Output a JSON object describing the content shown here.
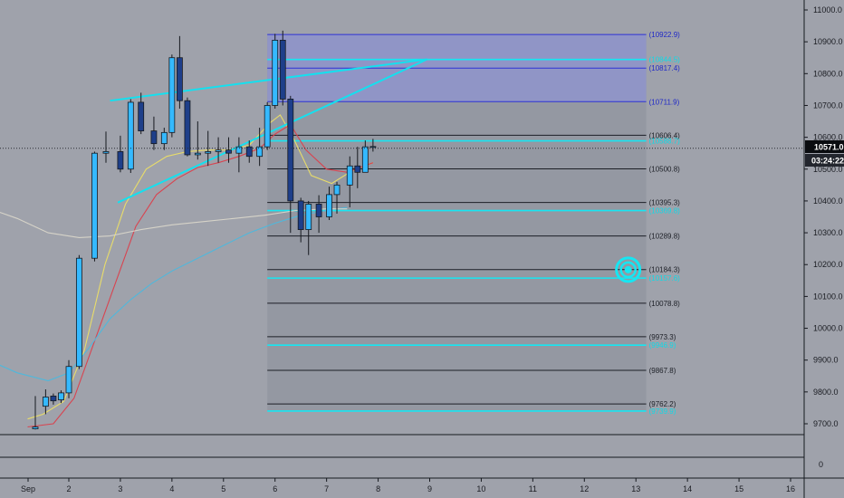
{
  "colors": {
    "background": "#9fa2ab",
    "candle_up": "#35b9ff",
    "candle_down": "#1e3f8a",
    "wick": "#16191f",
    "fib_zone": "#8f95c8",
    "fib_zone_edge": "#2c33d6",
    "fib_line": "#1c1f26",
    "fib_cyan": "#16e6f2",
    "ma_yellow": "#e8dc6a",
    "ma_red": "#d84450",
    "ma_blue": "#4fb8dc",
    "ma_white": "#d6d3c8",
    "trendline": "#14e0ef",
    "axis_bg": "#9fa2ab",
    "axis_line": "#16191f"
  },
  "chart_data": {
    "type": "candlestick",
    "title": "",
    "xlabel": "",
    "ylabel": "",
    "x_range": [
      0.3,
      16.75
    ],
    "ylim": [
      9565,
      11040
    ],
    "y_ticks": [
      "11000.0",
      "10900.0",
      "10800.0",
      "10700.0",
      "10600.0",
      "10500.0",
      "10400.0",
      "10300.0",
      "10200.0",
      "10100.0",
      "10000.0",
      "9900.0",
      "9800.0",
      "9700.0"
    ],
    "x_ticks": [
      {
        "x": 0.5,
        "label": "Sep"
      },
      {
        "x": 2,
        "label": "2"
      },
      {
        "x": 3,
        "label": "3"
      },
      {
        "x": 4,
        "label": "4"
      },
      {
        "x": 5,
        "label": "5"
      },
      {
        "x": 6,
        "label": "6"
      },
      {
        "x": 7,
        "label": "7"
      },
      {
        "x": 8,
        "label": "8"
      },
      {
        "x": 9,
        "label": "9"
      },
      {
        "x": 10,
        "label": "10"
      },
      {
        "x": 11,
        "label": "11"
      },
      {
        "x": 12,
        "label": "12"
      },
      {
        "x": 13,
        "label": "13"
      },
      {
        "x": 14,
        "label": "14"
      },
      {
        "x": 15,
        "label": "15"
      },
      {
        "x": 16,
        "label": "16"
      }
    ],
    "candles": [
      [
        1.35,
        9684,
        9787,
        9682,
        9690
      ],
      [
        1.55,
        9755,
        9808,
        9730,
        9784
      ],
      [
        1.7,
        9787,
        9795,
        9760,
        9772
      ],
      [
        1.85,
        9775,
        9805,
        9765,
        9797
      ],
      [
        2.0,
        9797,
        9900,
        9780,
        9880
      ],
      [
        2.2,
        9880,
        10230,
        9872,
        10220
      ],
      [
        2.5,
        10220,
        10555,
        10210,
        10550
      ],
      [
        2.72,
        10550,
        10618,
        10520,
        10555
      ],
      [
        3.0,
        10555,
        10605,
        10490,
        10500
      ],
      [
        3.2,
        10500,
        10720,
        10488,
        10710
      ],
      [
        3.4,
        10710,
        10740,
        10610,
        10620
      ],
      [
        3.65,
        10620,
        10665,
        10560,
        10580
      ],
      [
        3.85,
        10580,
        10630,
        10560,
        10615
      ],
      [
        4.0,
        10615,
        10860,
        10600,
        10850
      ],
      [
        4.15,
        10850,
        10918,
        10690,
        10715
      ],
      [
        4.3,
        10715,
        10725,
        10540,
        10545
      ],
      [
        4.5,
        10545,
        10650,
        10530,
        10550
      ],
      [
        4.7,
        10550,
        10620,
        10510,
        10555
      ],
      [
        4.9,
        10555,
        10600,
        10520,
        10560
      ],
      [
        5.1,
        10560,
        10600,
        10520,
        10550
      ],
      [
        5.3,
        10550,
        10600,
        10490,
        10570
      ],
      [
        5.5,
        10570,
        10590,
        10520,
        10540
      ],
      [
        5.7,
        10540,
        10630,
        10510,
        10570
      ],
      [
        5.85,
        10570,
        10710,
        10560,
        10700
      ],
      [
        6.0,
        10700,
        10925,
        10690,
        10905
      ],
      [
        6.15,
        10905,
        10935,
        10700,
        10720
      ],
      [
        6.3,
        10720,
        10730,
        10300,
        10400
      ],
      [
        6.5,
        10400,
        10410,
        10270,
        10310
      ],
      [
        6.65,
        10310,
        10400,
        10230,
        10390
      ],
      [
        6.85,
        10390,
        10418,
        10300,
        10350
      ],
      [
        7.05,
        10350,
        10445,
        10340,
        10420
      ],
      [
        7.2,
        10420,
        10460,
        10360,
        10450
      ],
      [
        7.45,
        10450,
        10540,
        10380,
        10510
      ],
      [
        7.6,
        10510,
        10570,
        10440,
        10490
      ],
      [
        7.75,
        10490,
        10590,
        10490,
        10570
      ],
      [
        7.9,
        10570,
        10595,
        10555,
        10571
      ]
    ],
    "moving_averages": [
      {
        "color_key": "ma_yellow",
        "points": [
          [
            1.2,
            9715
          ],
          [
            1.5,
            9730
          ],
          [
            1.9,
            9770
          ],
          [
            2.3,
            9930
          ],
          [
            2.7,
            10200
          ],
          [
            3.1,
            10390
          ],
          [
            3.5,
            10500
          ],
          [
            3.9,
            10540
          ],
          [
            4.3,
            10555
          ],
          [
            4.7,
            10560
          ],
          [
            5.1,
            10560
          ],
          [
            5.5,
            10575
          ],
          [
            5.9,
            10645
          ],
          [
            6.1,
            10670
          ],
          [
            6.35,
            10600
          ],
          [
            6.7,
            10480
          ],
          [
            7.1,
            10455
          ],
          [
            7.5,
            10495
          ],
          [
            7.9,
            10520
          ]
        ]
      },
      {
        "color_key": "ma_red",
        "points": [
          [
            1.2,
            9690
          ],
          [
            1.7,
            9700
          ],
          [
            2.1,
            9780
          ],
          [
            2.5,
            9960
          ],
          [
            2.9,
            10140
          ],
          [
            3.3,
            10320
          ],
          [
            3.7,
            10420
          ],
          [
            4.1,
            10470
          ],
          [
            4.5,
            10505
          ],
          [
            4.9,
            10520
          ],
          [
            5.3,
            10540
          ],
          [
            5.7,
            10565
          ],
          [
            6.0,
            10610
          ],
          [
            6.3,
            10640
          ],
          [
            6.6,
            10560
          ],
          [
            7.0,
            10500
          ],
          [
            7.4,
            10490
          ],
          [
            7.9,
            10520
          ]
        ]
      },
      {
        "color_key": "ma_blue",
        "points": [
          [
            0.3,
            9910
          ],
          [
            1.0,
            9860
          ],
          [
            1.6,
            9835
          ],
          [
            2.0,
            9860
          ],
          [
            2.4,
            9940
          ],
          [
            2.8,
            10030
          ],
          [
            3.2,
            10090
          ],
          [
            3.6,
            10140
          ],
          [
            4.0,
            10180
          ],
          [
            4.5,
            10220
          ],
          [
            5.0,
            10260
          ],
          [
            5.5,
            10300
          ],
          [
            6.0,
            10330
          ],
          [
            6.5,
            10355
          ],
          [
            7.0,
            10370
          ],
          [
            7.4,
            10380
          ]
        ]
      },
      {
        "color_key": "ma_white",
        "points": [
          [
            0.3,
            10385
          ],
          [
            1.0,
            10345
          ],
          [
            1.6,
            10300
          ],
          [
            2.2,
            10285
          ],
          [
            2.8,
            10290
          ],
          [
            3.4,
            10310
          ],
          [
            4.0,
            10325
          ],
          [
            4.6,
            10335
          ],
          [
            5.2,
            10345
          ],
          [
            5.8,
            10355
          ],
          [
            6.4,
            10370
          ],
          [
            7.0,
            10375
          ],
          [
            7.4,
            10375
          ]
        ]
      }
    ],
    "trendlines": [
      {
        "from": [
          2.8,
          10715
        ],
        "to": [
          8.95,
          10845
        ]
      },
      {
        "from": [
          2.95,
          10395
        ],
        "to": [
          8.95,
          10845
        ]
      }
    ],
    "fib_zone": {
      "x_start": 5.85,
      "x_end": 13.2,
      "top": 10922.9,
      "bottom": 10711.9
    },
    "fib_levels": [
      {
        "value": 10922.9,
        "label": "(10922.9)",
        "kind": "zone"
      },
      {
        "value": 10844.5,
        "label": "(10844.5)",
        "kind": "cyan"
      },
      {
        "value": 10817.4,
        "label": "(10817.4)",
        "kind": "zone"
      },
      {
        "value": 10711.9,
        "label": "(10711.9)",
        "kind": "zone"
      },
      {
        "value": 10606.4,
        "label": "(10606.4)",
        "kind": "dark"
      },
      {
        "value": 10588.7,
        "label": "(10588.7)",
        "kind": "cyan"
      },
      {
        "value": 10500.8,
        "label": "(10500.8)",
        "kind": "dark"
      },
      {
        "value": 10395.3,
        "label": "(10395.3)",
        "kind": "dark"
      },
      {
        "value": 10369.8,
        "label": "(10369.8)",
        "kind": "cyan"
      },
      {
        "value": 10289.8,
        "label": "(10289.8)",
        "kind": "dark"
      },
      {
        "value": 10184.3,
        "label": "(10184.3)",
        "kind": "dark"
      },
      {
        "value": 10157.6,
        "label": "(10157.6)",
        "kind": "cyan"
      },
      {
        "value": 10078.8,
        "label": "(10078.8)",
        "kind": "dark"
      },
      {
        "value": 9973.3,
        "label": "(9973.3)",
        "kind": "dark"
      },
      {
        "value": 9946.9,
        "label": "(9946.9)",
        "kind": "cyan"
      },
      {
        "value": 9867.8,
        "label": "(9867.8)",
        "kind": "dark"
      },
      {
        "value": 9762.2,
        "label": "(9762.2)",
        "kind": "dark"
      },
      {
        "value": 9739.9,
        "label": "(9739.9)",
        "kind": "cyan"
      }
    ],
    "target_marker": {
      "x": 12.85,
      "y": 10184
    },
    "current_price": {
      "value": 10571.0,
      "label": "10571.0",
      "countdown": "03:24:22"
    },
    "lower_pane": {
      "label": "0"
    }
  }
}
